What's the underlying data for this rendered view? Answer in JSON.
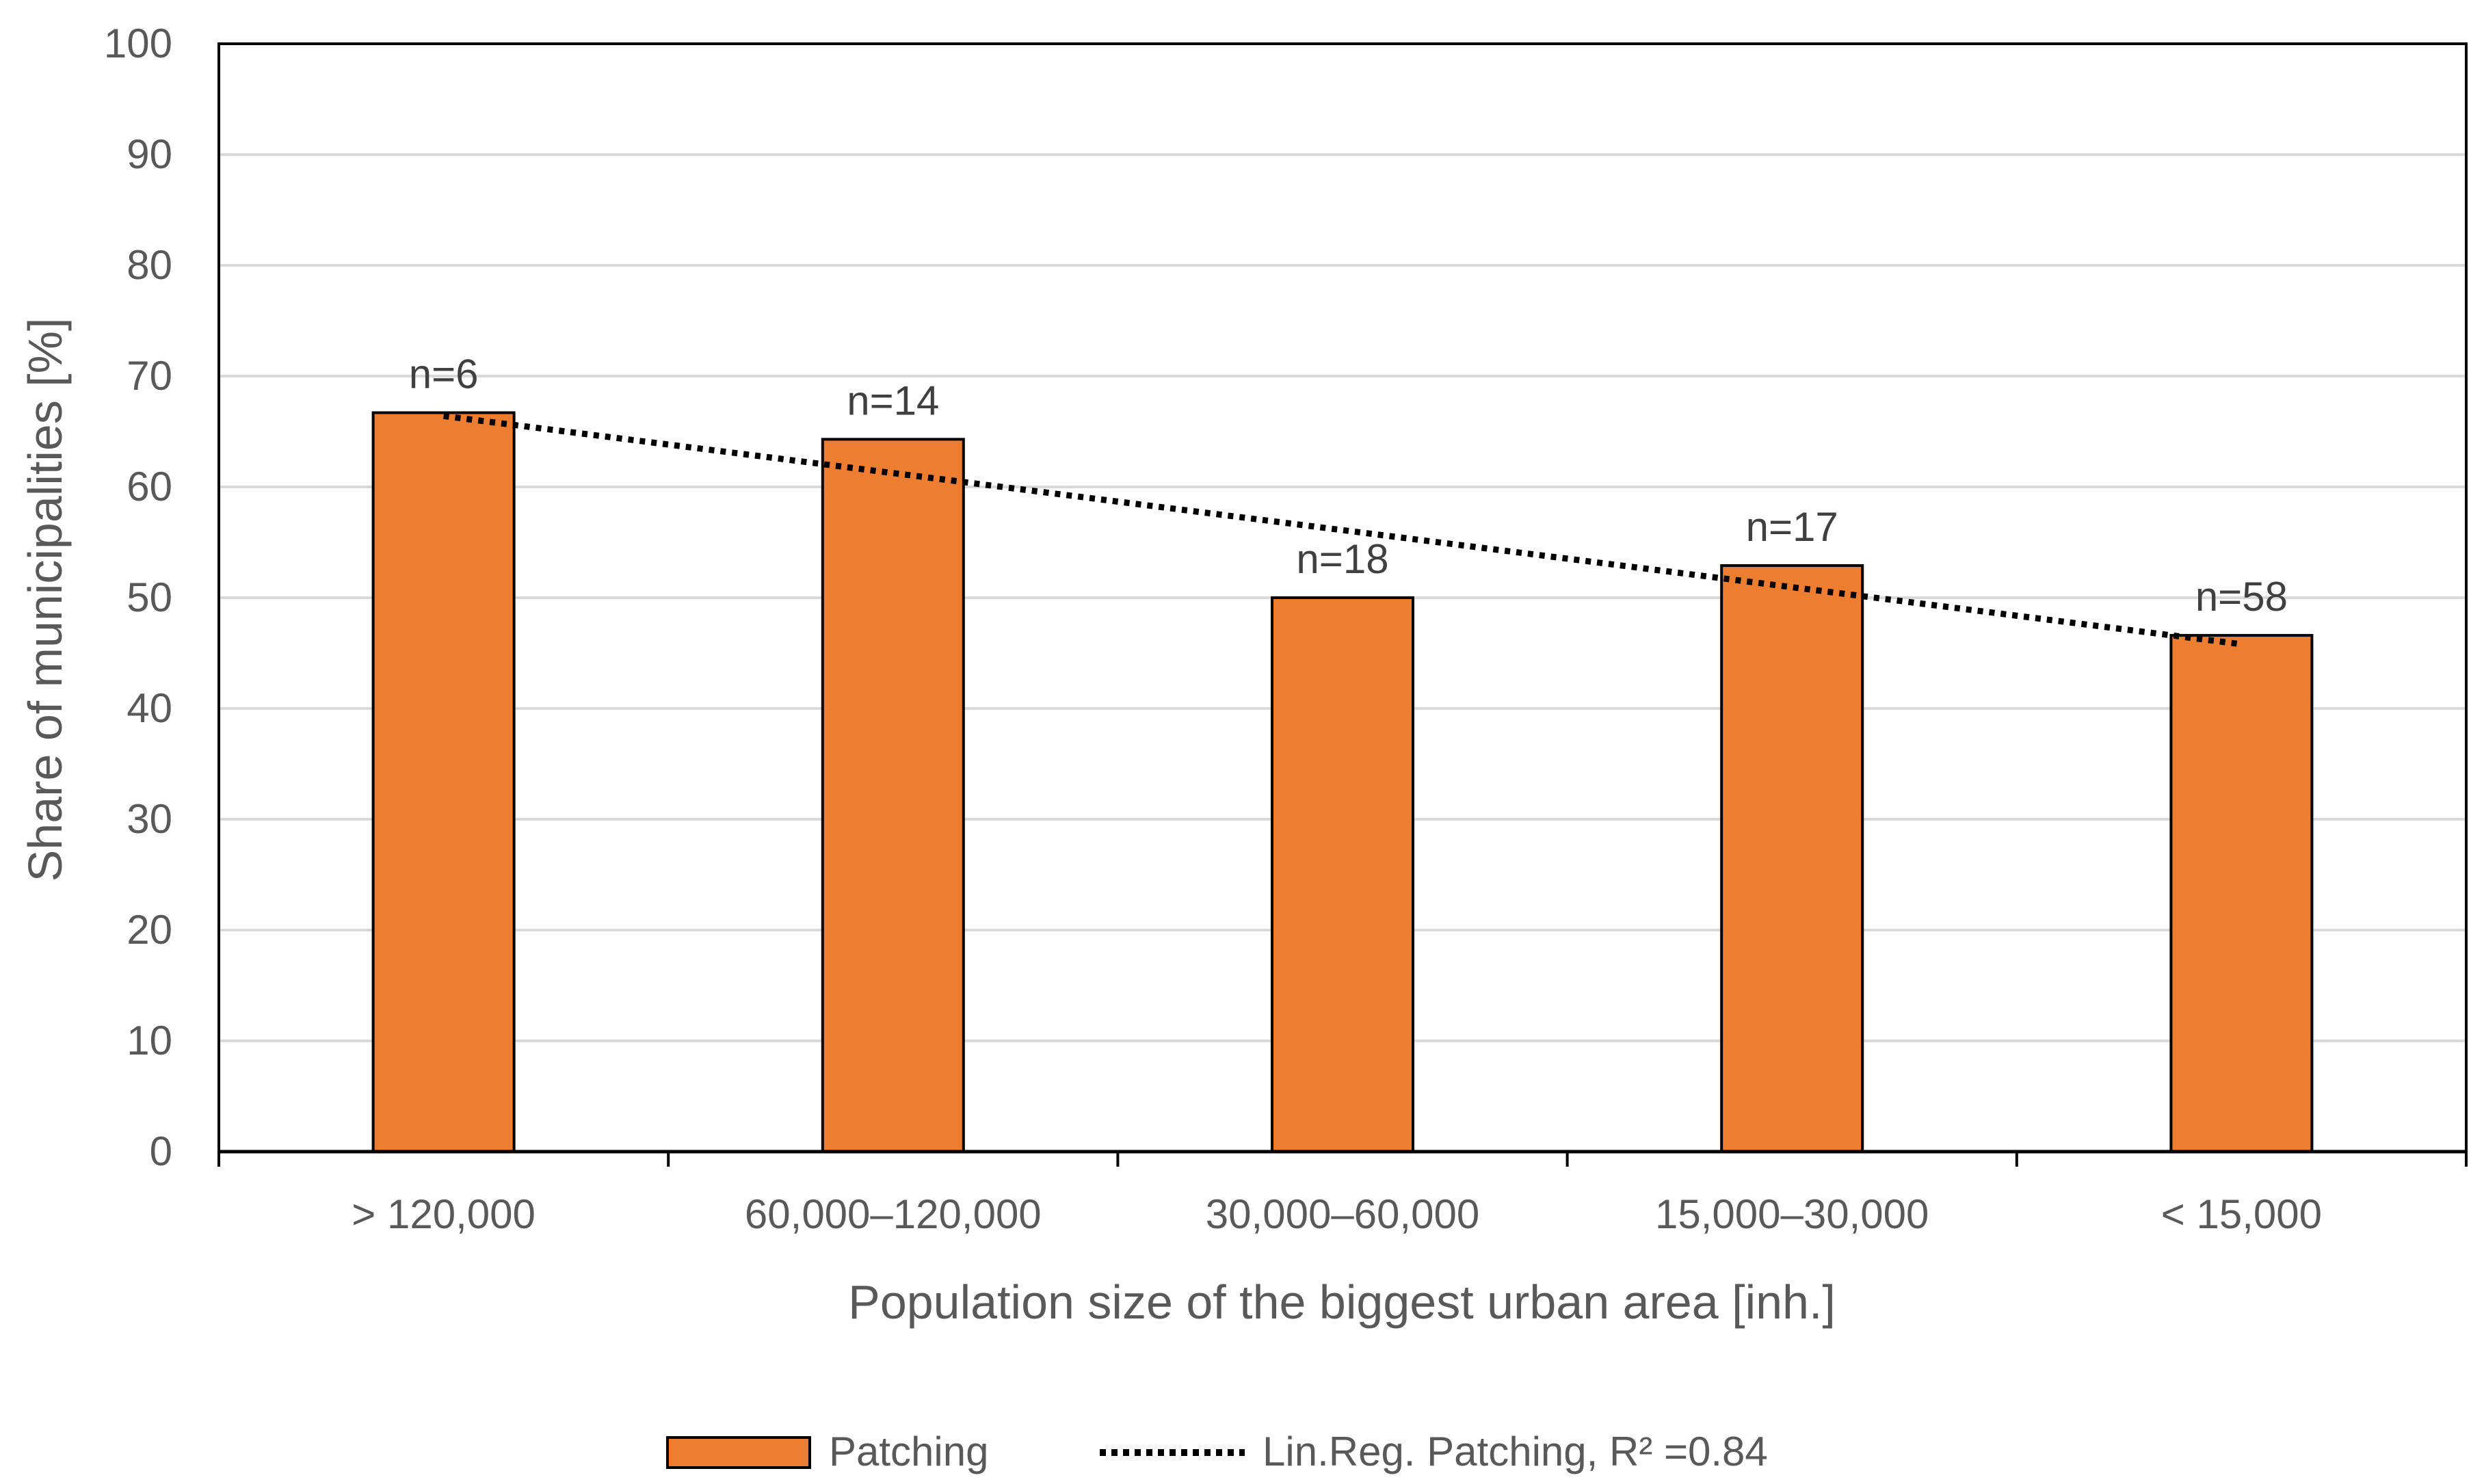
{
  "chart_data": {
    "type": "bar",
    "title": "",
    "xlabel": "Population size of the biggest urban area [inh.]",
    "ylabel": "Share of municipalities [%]",
    "ylim": [
      0,
      100
    ],
    "yticks": [
      0,
      10,
      20,
      30,
      40,
      50,
      60,
      70,
      80,
      90,
      100
    ],
    "ytick_labels": [
      "0",
      "10",
      "20",
      "30",
      "40",
      "50",
      "60",
      "70",
      "80",
      "90",
      "100"
    ],
    "grid": true,
    "categories": [
      "> 120,000",
      "60,000–120,000",
      "30,000–60,000",
      "15,000–30,000",
      "< 15,000"
    ],
    "series": [
      {
        "name": "Patching",
        "values": [
          66.7,
          64.3,
          50.0,
          52.9,
          46.6
        ],
        "data_labels": [
          "n=6",
          "n=14",
          "n=18",
          "n=17",
          "n=58"
        ],
        "color": "#ED7D31",
        "edge_color": "#000000"
      }
    ],
    "trendline": {
      "name": "Lin.Reg. Patching, R² =0.84",
      "type": "linear",
      "start_value": 66.4,
      "end_value": 45.8,
      "color": "#000000",
      "style": "dotted"
    },
    "legend": {
      "position": "bottom",
      "entries": [
        "Patching",
        "Lin.Reg. Patching, R² =0.84"
      ]
    },
    "colors": {
      "grid": "#D9D9D9",
      "axis": "#000000",
      "text": "#595959"
    }
  }
}
